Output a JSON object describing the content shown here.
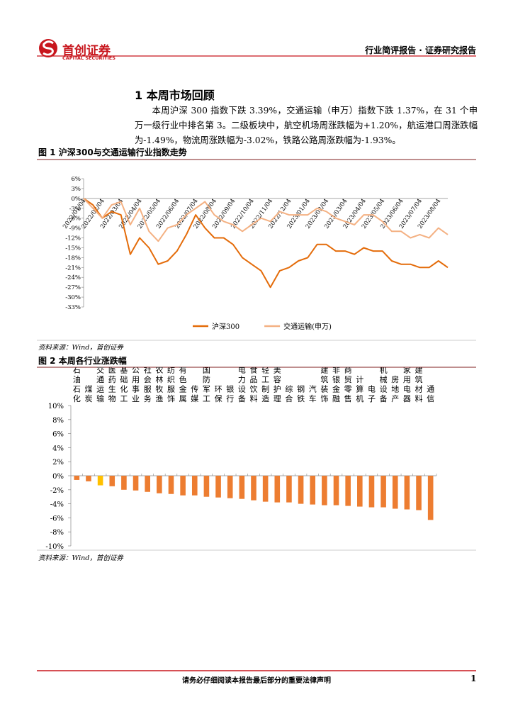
{
  "header": {
    "brand": "首创证券",
    "brand_en": "CAPITAL SECURITIES",
    "report_type": "行业简评报告 · 证券研究报告"
  },
  "section": {
    "title": "1 本周市场回顾",
    "paragraph": "本周沪深 300 指数下跌 3.39%，交通运输（申万）指数下跌 1.37%，在 31 个申万一级行业中排名第 3。二级板块中，航空机场周涨跌幅为+1.20%，航运港口周涨跌幅为-1.49%，物流周涨跌幅为-3.02%，铁路公路周涨跌幅为-1.93%。"
  },
  "chart_data": [
    {
      "type": "line",
      "title": "图 1  沪深300与交通运输行业指数走势",
      "source": "资料来源：Wind，首创证券",
      "categories": [
        "2022/01/04",
        null,
        "2022/02/04",
        null,
        "2022/03/04",
        null,
        "2022/04/04",
        null,
        "2022/05/04",
        null,
        "2022/06/04",
        null,
        "2022/07/04",
        null,
        "2022/08/04",
        null,
        "2022/09/04",
        null,
        "2022/10/04",
        null,
        "2022/11/04",
        null,
        "2022/12/04",
        null,
        "2023/01/04",
        null,
        "2023/02/04",
        null,
        "2023/03/04",
        null,
        "2023/04/04",
        null,
        "2023/05/04",
        null,
        "2023/06/04",
        null,
        "2023/07/04",
        null,
        "2023/08/04",
        null
      ],
      "series": [
        {
          "name": "沪深300",
          "color": "#E46C0A",
          "values": [
            0,
            -2,
            -6,
            -4,
            -5,
            -17,
            -12,
            -15,
            -20,
            -19,
            -16,
            -11,
            -5,
            -9,
            -12,
            -12,
            -14,
            -18,
            -20,
            -22,
            -27,
            -22,
            -21,
            -19,
            -18,
            -14,
            -14,
            -16,
            -16,
            -17,
            -15,
            -16,
            -16,
            -19,
            -20,
            -20,
            -21,
            -21,
            -19,
            -21
          ]
        },
        {
          "name": "交通运输(申万)",
          "color": "#F4B183",
          "values": [
            0,
            -3,
            -6,
            -2,
            -1,
            -8,
            -3,
            -10,
            -13,
            -9,
            -8,
            -5,
            -3,
            -1,
            -5,
            -7,
            -8,
            -10,
            -8,
            -6,
            -7,
            -4,
            -5,
            -5,
            -5,
            -3,
            -4,
            -6,
            -7,
            -8,
            -5,
            -5,
            -7,
            -10,
            -10,
            -12,
            -11,
            -12,
            -9,
            -11
          ]
        }
      ],
      "ylim": [
        -33,
        6
      ],
      "yticks": [
        {
          "value": 6,
          "label": "6%"
        },
        {
          "value": 3,
          "label": "3%"
        },
        {
          "value": 0,
          "label": "0%"
        },
        {
          "value": -3,
          "label": "-3%"
        },
        {
          "value": -6,
          "label": "-6%"
        },
        {
          "value": -9,
          "label": "-9%"
        },
        {
          "value": -12,
          "label": "-12%"
        },
        {
          "value": -15,
          "label": "-15%"
        },
        {
          "value": -18,
          "label": "-18%"
        },
        {
          "value": -21,
          "label": "-21%"
        },
        {
          "value": -24,
          "label": "-24%"
        },
        {
          "value": -27,
          "label": "-27%"
        },
        {
          "value": -30,
          "label": "-30%"
        },
        {
          "value": -33,
          "label": "-33%"
        }
      ],
      "legend": "bottom",
      "grid": false
    },
    {
      "type": "bar",
      "title": "图 2  本周各行业涨跌幅",
      "source": "资料来源：Wind，首创证券",
      "categories": [
        "石油石化",
        "煤炭",
        "交通运输",
        "医药生物",
        "基础化工",
        "公用事业",
        "社会服务",
        "农林牧渔",
        "纺织服饰",
        "有色金属",
        "传媒",
        "国防军工",
        "环保",
        "银行",
        "电力设备",
        "食品饮料",
        "轻工制造",
        "美容护理",
        "综合",
        "钢铁",
        "汽车",
        "建筑装饰",
        "非银金融",
        "商贸零售",
        "计算机",
        "电子",
        "机械设备",
        "房地产",
        "家用电器",
        "建筑材料",
        "通信"
      ],
      "values": [
        -0.6,
        -0.8,
        -1.37,
        -1.5,
        -2.0,
        -2.1,
        -2.3,
        -2.5,
        -2.6,
        -2.8,
        -2.8,
        -3.0,
        -3.1,
        -3.2,
        -3.3,
        -3.5,
        -3.7,
        -3.8,
        -3.8,
        -4.0,
        -4.1,
        -4.2,
        -4.2,
        -4.3,
        -4.4,
        -4.5,
        -4.5,
        -4.7,
        -4.8,
        -4.9,
        -6.3
      ],
      "colors": [
        "#ED7D31",
        "#ED7D31",
        "#FFC000",
        "#ED7D31",
        "#ED7D31",
        "#ED7D31",
        "#ED7D31",
        "#ED7D31",
        "#ED7D31",
        "#ED7D31",
        "#ED7D31",
        "#ED7D31",
        "#ED7D31",
        "#ED7D31",
        "#ED7D31",
        "#ED7D31",
        "#ED7D31",
        "#ED7D31",
        "#ED7D31",
        "#ED7D31",
        "#ED7D31",
        "#ED7D31",
        "#ED7D31",
        "#ED7D31",
        "#ED7D31",
        "#ED7D31",
        "#ED7D31",
        "#ED7D31",
        "#ED7D31",
        "#ED7D31",
        "#ED7D31"
      ],
      "ylim": [
        -10,
        10
      ],
      "yticks": [
        {
          "value": 10,
          "label": "10%"
        },
        {
          "value": 8,
          "label": "8%"
        },
        {
          "value": 6,
          "label": "6%"
        },
        {
          "value": 4,
          "label": "4%"
        },
        {
          "value": 2,
          "label": "2%"
        },
        {
          "value": 0,
          "label": "0%"
        },
        {
          "value": -2,
          "label": "-2%"
        },
        {
          "value": -4,
          "label": "-4%"
        },
        {
          "value": -6,
          "label": "-6%"
        },
        {
          "value": -8,
          "label": "-8%"
        },
        {
          "value": -10,
          "label": "-10%"
        }
      ],
      "grid": false
    }
  ],
  "footer": {
    "disclaimer": "请务必仔细阅读本报告最后部分的重要法律声明",
    "page": 1
  }
}
